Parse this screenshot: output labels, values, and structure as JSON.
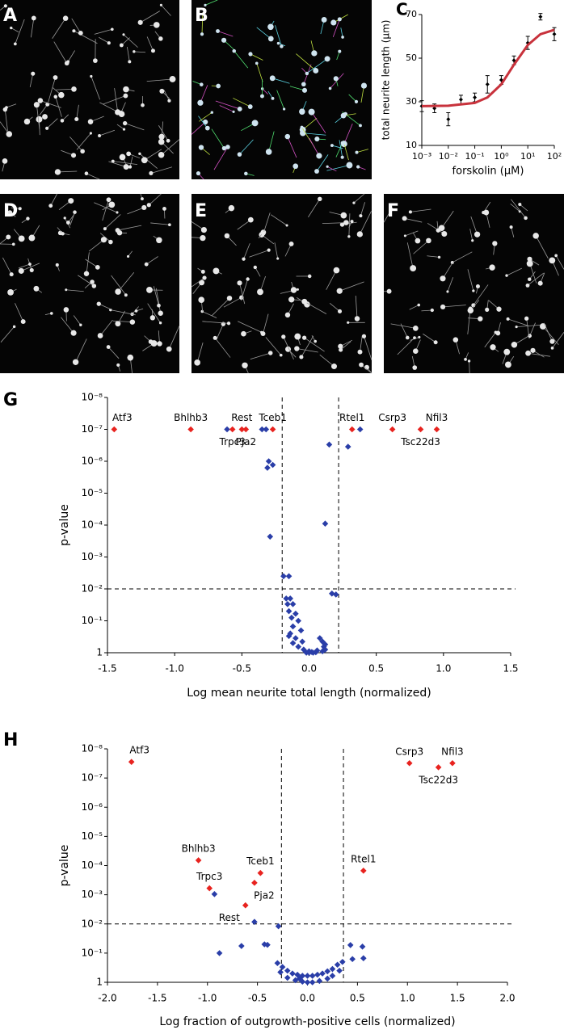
{
  "panels": [
    "A",
    "B",
    "D",
    "E",
    "F"
  ],
  "chart_data": [
    {
      "panel": "C",
      "type": "scatter",
      "xlabel": "forskolin (μM)",
      "ylabel": "total neurite length (μm)",
      "xscale": "log",
      "xlim": [
        0.001,
        100
      ],
      "xticks": [
        {
          "value": 0.001,
          "label": "10⁻³"
        },
        {
          "value": 0.01,
          "label": "10⁻²"
        },
        {
          "value": 0.1,
          "label": "10⁻¹"
        },
        {
          "value": 1,
          "label": "10⁰"
        },
        {
          "value": 10,
          "label": "10¹"
        },
        {
          "value": 100,
          "label": "10²"
        }
      ],
      "ylim": [
        10,
        70
      ],
      "yticks": [
        10,
        30,
        50,
        70
      ],
      "series": [
        {
          "color": "#000000",
          "x": [
            0.001,
            0.003,
            0.01,
            0.03,
            0.1,
            0.3,
            1,
            3,
            10,
            30,
            100
          ],
          "values": [
            28,
            27,
            22,
            31,
            32,
            38,
            40,
            49,
            57,
            69,
            61
          ],
          "errors": [
            2.5,
            2,
            3,
            2,
            2,
            4,
            2,
            2,
            3,
            1.5,
            3
          ]
        },
        {
          "color": "#c8323c",
          "line": true,
          "x": [
            0.001,
            0.01,
            0.1,
            0.3,
            1,
            3,
            10,
            30,
            100
          ],
          "values": [
            28,
            28.2,
            29.5,
            32,
            38,
            47,
            56,
            61,
            63
          ]
        }
      ]
    },
    {
      "panel": "G",
      "type": "scatter",
      "xlabel": "Log mean neurite total length (normalized)",
      "ylabel": "p-value",
      "yscale": "log",
      "ylim": [
        1,
        1e-08
      ],
      "yticks": [
        {
          "value": 1e-08,
          "label": "10⁻⁸"
        },
        {
          "value": 1e-07,
          "label": "10⁻⁷"
        },
        {
          "value": 1e-06,
          "label": "10⁻⁶"
        },
        {
          "value": 1e-05,
          "label": "10⁻⁵"
        },
        {
          "value": 0.0001,
          "label": "10⁻⁴"
        },
        {
          "value": 0.001,
          "label": "10⁻³"
        },
        {
          "value": 0.01,
          "label": "10⁻²"
        },
        {
          "value": 0.1,
          "label": "10⁻¹"
        },
        1
      ],
      "xlim": [
        -1.5,
        1.5
      ],
      "xticks": [
        -1.5,
        {
          "value": -1,
          "label": "-1.0"
        },
        -0.5,
        {
          "value": 0,
          "label": "0.0"
        },
        0.5,
        {
          "value": 1,
          "label": "1.0"
        },
        1.5
      ],
      "thresholds": {
        "x": [
          -0.2,
          0.22
        ],
        "y": 0.01
      },
      "series": [
        {
          "color": "#2a3ea8",
          "x": [
            -0.61,
            -0.35,
            -0.32,
            0.38,
            0.15,
            0.29,
            -0.3,
            -0.31,
            -0.27,
            0.12,
            -0.29,
            -0.19,
            -0.15,
            0.17,
            0.2,
            -0.17,
            -0.14,
            -0.16,
            -0.12,
            -0.15,
            -0.1,
            -0.13,
            -0.08,
            -0.12,
            -0.06,
            -0.14,
            -0.1,
            -0.05,
            -0.12,
            0.08,
            0.1,
            0.12,
            -0.08,
            0.11,
            -0.04,
            0.0,
            0.02,
            0.05,
            -0.02,
            0.0,
            0.03,
            0.06,
            0.1,
            0.12,
            -0.15
          ],
          "values": [
            1e-07,
            1e-07,
            1e-07,
            1e-07,
            3e-07,
            3.5e-07,
            1e-06,
            1.6e-06,
            1.3e-06,
            9e-05,
            0.00023,
            0.004,
            0.004,
            0.014,
            0.015,
            0.02,
            0.02,
            0.03,
            0.03,
            0.05,
            0.06,
            0.08,
            0.1,
            0.15,
            0.2,
            0.25,
            0.35,
            0.45,
            0.5,
            0.35,
            0.45,
            0.55,
            0.65,
            0.65,
            0.8,
            0.9,
            0.95,
            0.97,
            1,
            1,
            1,
            0.85,
            0.9,
            0.8,
            0.3
          ]
        },
        {
          "color": "#e8231f",
          "x": [
            -1.45,
            -0.88,
            -0.57,
            -0.5,
            -0.47,
            -0.27,
            0.32,
            0.62,
            0.83,
            0.95
          ],
          "values": [
            1e-07,
            1e-07,
            1e-07,
            1e-07,
            1e-07,
            1e-07,
            1e-07,
            1e-07,
            1e-07,
            1e-07
          ],
          "labels": [
            "Atf3",
            "Bhlhb3",
            "Trpc3",
            "Rest",
            "Pja2",
            "Tceb1",
            "Rtel1",
            "Csrp3",
            "Tsc22d3",
            "Nfil3"
          ]
        }
      ]
    },
    {
      "panel": "H",
      "type": "scatter",
      "xlabel": "Log fraction of outgrowth-positive cells (normalized)",
      "ylabel": "p-value",
      "yscale": "log",
      "ylim": [
        1,
        1e-08
      ],
      "yticks": [
        {
          "value": 1e-08,
          "label": "10⁻⁸"
        },
        {
          "value": 1e-07,
          "label": "10⁻⁷"
        },
        {
          "value": 1e-06,
          "label": "10⁻⁶"
        },
        {
          "value": 1e-05,
          "label": "10⁻⁵"
        },
        {
          "value": 0.0001,
          "label": "10⁻⁴"
        },
        {
          "value": 0.001,
          "label": "10⁻³"
        },
        {
          "value": 0.01,
          "label": "10⁻²"
        },
        {
          "value": 0.1,
          "label": "10⁻¹"
        },
        1
      ],
      "xlim": [
        -2,
        2
      ],
      "xticks": [
        {
          "value": -2,
          "label": "-2.0"
        },
        -1.5,
        {
          "value": -1,
          "label": "-1.0"
        },
        -0.5,
        {
          "value": 0,
          "label": "0.0"
        },
        0.5,
        {
          "value": 1,
          "label": "1.0"
        },
        1.5,
        {
          "value": 2,
          "label": "2.0"
        }
      ],
      "thresholds": {
        "x": [
          -0.26,
          0.36
        ],
        "y": 0.01
      },
      "series": [
        {
          "color": "#2a3ea8",
          "x": [
            -0.93,
            -0.53,
            -0.29,
            -0.66,
            -0.43,
            -0.4,
            -0.88,
            0.43,
            0.55,
            0.45,
            0.56,
            -0.3,
            -0.25,
            -0.2,
            -0.15,
            -0.1,
            -0.05,
            0.0,
            0.05,
            0.1,
            0.15,
            0.2,
            0.25,
            0.3,
            0.35,
            -0.2,
            -0.12,
            -0.05,
            0.0,
            0.05,
            0.12,
            0.2,
            -0.27,
            0.32,
            0.25,
            -0.08
          ],
          "values": [
            0.00095,
            0.0085,
            0.012,
            0.057,
            0.05,
            0.052,
            0.1,
            0.053,
            0.06,
            0.16,
            0.15,
            0.22,
            0.3,
            0.4,
            0.5,
            0.55,
            0.6,
            0.6,
            0.6,
            0.55,
            0.5,
            0.42,
            0.35,
            0.25,
            0.2,
            0.7,
            0.85,
            0.95,
            1,
            1,
            0.9,
            0.75,
            0.45,
            0.4,
            0.6,
            0.75
          ]
        },
        {
          "color": "#e8231f",
          "x": [
            -1.76,
            -1.09,
            -0.98,
            -0.47,
            -0.53,
            -0.62,
            0.56,
            1.02,
            1.31,
            1.45
          ],
          "values": [
            2.8e-08,
            6.6e-05,
            0.0006,
            0.00018,
            0.00039,
            0.0023,
            0.00015,
            3.1e-08,
            4.3e-08,
            3.1e-08
          ],
          "labels": [
            "Atf3",
            "Bhlhb3",
            "Trpc3",
            "Tceb1",
            "Pja2",
            "Rest",
            "Rtel1",
            "Csrp3",
            "Tsc22d3",
            "Nfil3"
          ]
        }
      ]
    }
  ]
}
